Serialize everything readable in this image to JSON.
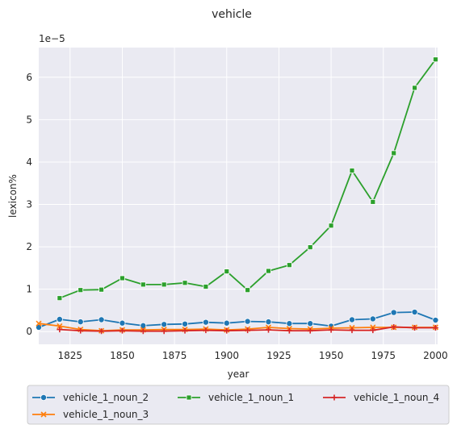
{
  "chart_data": {
    "type": "line",
    "title": "vehicle",
    "xlabel": "year",
    "ylabel": "lexicon%",
    "y_offset_label": "1e−5",
    "xlim": [
      1810,
      2001
    ],
    "ylim": [
      -0.3,
      6.7
    ],
    "x_ticks": [
      1825,
      1850,
      1875,
      1900,
      1925,
      1950,
      1975,
      2000
    ],
    "y_ticks": [
      0,
      1,
      2,
      3,
      4,
      5,
      6
    ],
    "grid": true,
    "legend_position": "bottom",
    "colors": {
      "plot_background": "#eaeaf2",
      "grid": "#ffffff",
      "vehicle_1_noun_2": "#1f77b4",
      "vehicle_1_noun_3": "#ff7f0e",
      "vehicle_1_noun_1": "#2ca02c",
      "vehicle_1_noun_4": "#d62728"
    },
    "series": [
      {
        "name": "vehicle_1_noun_2",
        "marker": "circle",
        "x": [
          1810,
          1820,
          1830,
          1840,
          1850,
          1860,
          1870,
          1880,
          1890,
          1900,
          1910,
          1920,
          1930,
          1940,
          1950,
          1960,
          1970,
          1980,
          1990,
          2000
        ],
        "values": [
          0.1,
          0.29,
          0.23,
          0.28,
          0.2,
          0.14,
          0.17,
          0.18,
          0.22,
          0.2,
          0.24,
          0.23,
          0.19,
          0.19,
          0.13,
          0.28,
          0.3,
          0.45,
          0.46,
          0.27
        ]
      },
      {
        "name": "vehicle_1_noun_3",
        "marker": "x",
        "x": [
          1810,
          1820,
          1830,
          1840,
          1850,
          1860,
          1870,
          1880,
          1890,
          1900,
          1910,
          1920,
          1930,
          1940,
          1950,
          1960,
          1970,
          1980,
          1990,
          2000
        ],
        "values": [
          0.19,
          0.13,
          0.05,
          0.02,
          0.04,
          0.04,
          0.05,
          0.05,
          0.06,
          0.04,
          0.06,
          0.1,
          0.07,
          0.06,
          0.08,
          0.09,
          0.1,
          0.1,
          0.1,
          0.1
        ]
      },
      {
        "name": "vehicle_1_noun_1",
        "marker": "square",
        "x": [
          1820,
          1830,
          1840,
          1850,
          1860,
          1870,
          1880,
          1890,
          1900,
          1910,
          1920,
          1930,
          1940,
          1950,
          1960,
          1970,
          1980,
          1990,
          2000
        ],
        "values": [
          0.79,
          0.98,
          0.99,
          1.26,
          1.11,
          1.11,
          1.15,
          1.06,
          1.42,
          0.98,
          1.43,
          1.57,
          1.99,
          2.5,
          3.8,
          3.06,
          4.21,
          5.75,
          6.42
        ]
      },
      {
        "name": "vehicle_1_noun_4",
        "marker": "plus",
        "x": [
          1820,
          1830,
          1840,
          1850,
          1860,
          1870,
          1880,
          1890,
          1900,
          1910,
          1920,
          1930,
          1940,
          1950,
          1960,
          1970,
          1980,
          1990,
          2000
        ],
        "values": [
          0.05,
          0.02,
          0.01,
          0.02,
          0.01,
          0.01,
          0.02,
          0.03,
          0.02,
          0.03,
          0.04,
          0.02,
          0.02,
          0.04,
          0.03,
          0.03,
          0.11,
          0.09,
          0.09
        ]
      }
    ]
  }
}
